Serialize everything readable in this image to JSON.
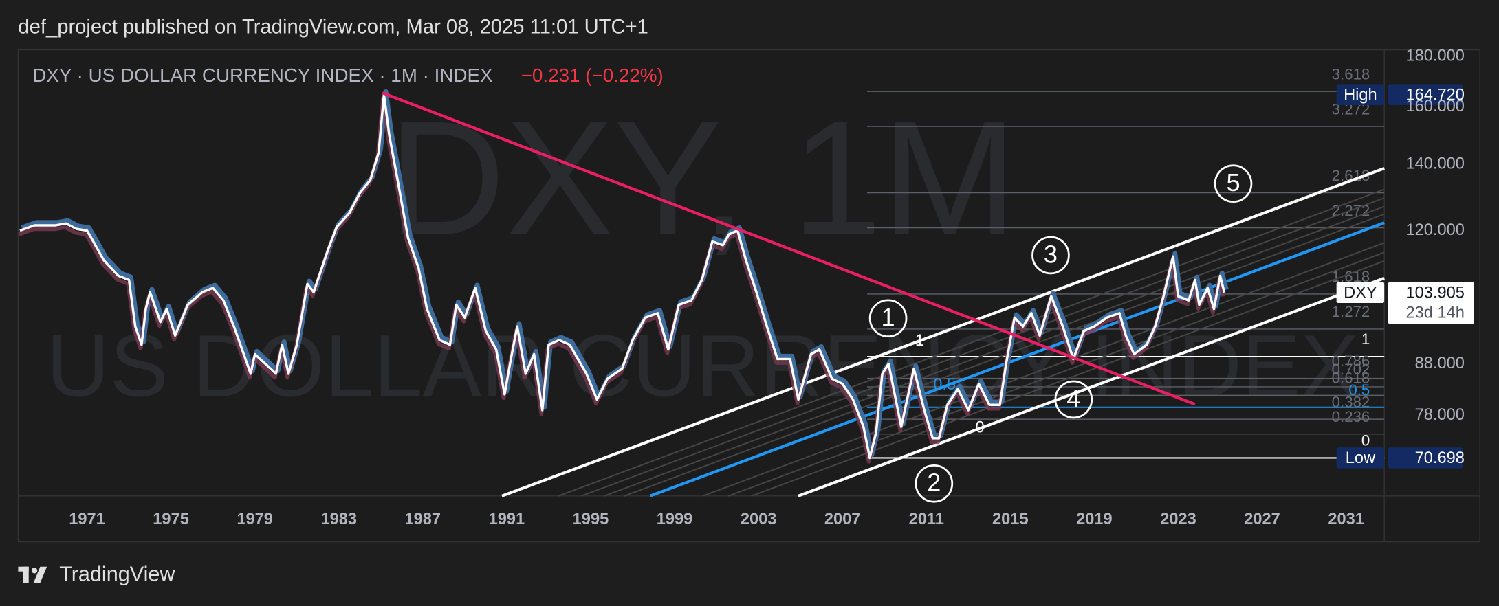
{
  "header": "def_project published on TradingView.com, Mar 08, 2025 11:01 UTC+1",
  "footer": "TradingView",
  "chart_data": {
    "type": "line",
    "legend": "DXY · US DOLLAR CURRENCY INDEX · 1M · INDEX",
    "change": "−0.231 (−0.22%)",
    "watermark": "DXY, 1M",
    "watermark_subtitle": "US DOLLAR CURRENCY INDEX",
    "log_scale": true,
    "grid": false,
    "color": "#ffffff",
    "x": [
      1967.8,
      1968.5,
      1969.5,
      1970.0,
      1970.5,
      1971.0,
      1971.3,
      1971.8,
      1972.5,
      1973.0,
      1973.3,
      1973.6,
      1973.8,
      1974.0,
      1974.5,
      1974.8,
      1975.2,
      1975.8,
      1976.5,
      1977.0,
      1977.5,
      1978.0,
      1978.8,
      1979.0,
      1979.5,
      1980.0,
      1980.3,
      1980.6,
      1981.0,
      1981.5,
      1981.8,
      1982.5,
      1982.9,
      1983.5,
      1984.0,
      1984.5,
      1984.9,
      1985.15,
      1985.4,
      1985.8,
      1986.3,
      1986.8,
      1987.2,
      1987.8,
      1988.3,
      1988.6,
      1989.0,
      1989.5,
      1990.0,
      1990.5,
      1990.9,
      1991.2,
      1991.5,
      1991.9,
      1992.3,
      1992.7,
      1993.0,
      1993.5,
      1994.0,
      1994.8,
      1995.3,
      1995.8,
      1996.5,
      1997.0,
      1997.6,
      1998.2,
      1998.7,
      1999.2,
      1999.8,
      2000.3,
      2000.8,
      2001.3,
      2001.6,
      2002.0,
      2002.4,
      2002.9,
      2003.4,
      2003.9,
      2004.5,
      2004.9,
      2005.5,
      2005.9,
      2006.5,
      2007.0,
      2007.5,
      2008.0,
      2008.3,
      2008.6,
      2008.9,
      2009.2,
      2009.8,
      2010.4,
      2010.9,
      2011.3,
      2011.6,
      2012.0,
      2012.5,
      2013.0,
      2013.5,
      2014.0,
      2014.5,
      2014.8,
      2015.2,
      2015.6,
      2016.0,
      2016.4,
      2016.95,
      2017.5,
      2018.0,
      2018.5,
      2019.0,
      2019.6,
      2020.2,
      2020.5,
      2020.9,
      2021.5,
      2021.9,
      2022.3,
      2022.75,
      2023.0,
      2023.5,
      2023.8,
      2024.0,
      2024.4,
      2024.7,
      2025.0,
      2025.2
    ],
    "values": [
      120,
      121.5,
      121.5,
      122,
      120.5,
      120,
      117,
      112,
      108,
      107,
      96,
      92,
      100,
      104,
      97,
      100,
      94,
      101,
      104,
      105,
      102,
      96,
      86,
      90,
      88,
      86,
      92,
      86,
      92,
      106,
      104,
      115,
      121,
      125,
      131,
      135,
      144,
      164.72,
      150,
      135,
      118,
      110,
      100,
      93,
      92,
      101,
      98,
      105,
      95,
      91,
      82,
      89,
      96,
      86,
      90,
      79,
      92,
      93,
      92,
      86,
      81,
      85,
      87,
      93,
      98,
      99,
      91,
      101,
      102,
      107,
      117,
      116,
      119,
      120,
      112,
      104,
      96,
      89,
      89,
      81,
      90,
      91,
      85,
      84,
      81,
      76,
      70.698,
      75,
      86,
      88,
      76,
      87,
      79,
      74,
      74,
      80,
      83,
      79,
      84,
      80,
      80,
      88,
      98,
      96,
      99,
      94,
      103,
      96,
      89,
      95,
      96,
      98,
      99,
      94,
      90,
      92,
      96,
      103,
      113,
      103,
      102,
      107,
      101,
      105,
      100,
      108,
      103.905
    ],
    "xlim": [
      1967.72,
      2032.82
    ],
    "xticks": [
      1971,
      1975,
      1979,
      1983,
      1987,
      1991,
      1995,
      1999,
      2003,
      2007,
      2011,
      2015,
      2019,
      2023,
      2027,
      2031
    ],
    "ylim": [
      64.7,
      182.8
    ],
    "yticks": [
      {
        "value": 78,
        "label": "78.000"
      },
      {
        "value": 88,
        "label": "88.000"
      },
      {
        "value": 120,
        "label": "120.000"
      },
      {
        "value": 140,
        "label": "140.000"
      },
      {
        "value": 160,
        "label": "160.000"
      },
      {
        "value": 180,
        "label": "180.000"
      }
    ],
    "fib_levels": [
      3.618,
      3.272,
      2.618,
      2.272,
      1.618,
      1.272,
      1,
      0.786,
      0.702,
      0.618,
      0.5,
      0.382,
      0.236,
      0
    ],
    "fib_prices": [
      165.92,
      152.93,
      131.07,
      120.8,
      103.54,
      95.42,
      89.5,
      85.09,
      83.42,
      81.79,
      79.54,
      77.36,
      74.74,
      70.698
    ],
    "fib_colors": [
      "#5d606b",
      "#5d606b",
      "#5d606b",
      "#5d606b",
      "#5d606b",
      "#5d606b",
      "#ffffff",
      "#5d606b",
      "#5d606b",
      "#5d606b",
      "#2196f3",
      "#5d606b",
      "#5d606b",
      "#ffffff"
    ],
    "markers": [
      {
        "name": "High",
        "value": 164.72,
        "label": "164.720"
      },
      {
        "name": "Low",
        "value": 70.698,
        "label": "70.698"
      },
      {
        "name": "DXY",
        "value": 103.905,
        "label": "103.905"
      }
    ],
    "countdown": "23d 14h",
    "waves": [
      "1",
      "2",
      "3",
      "4",
      "5"
    ],
    "channel_levels": [
      1,
      0.5,
      0
    ]
  }
}
